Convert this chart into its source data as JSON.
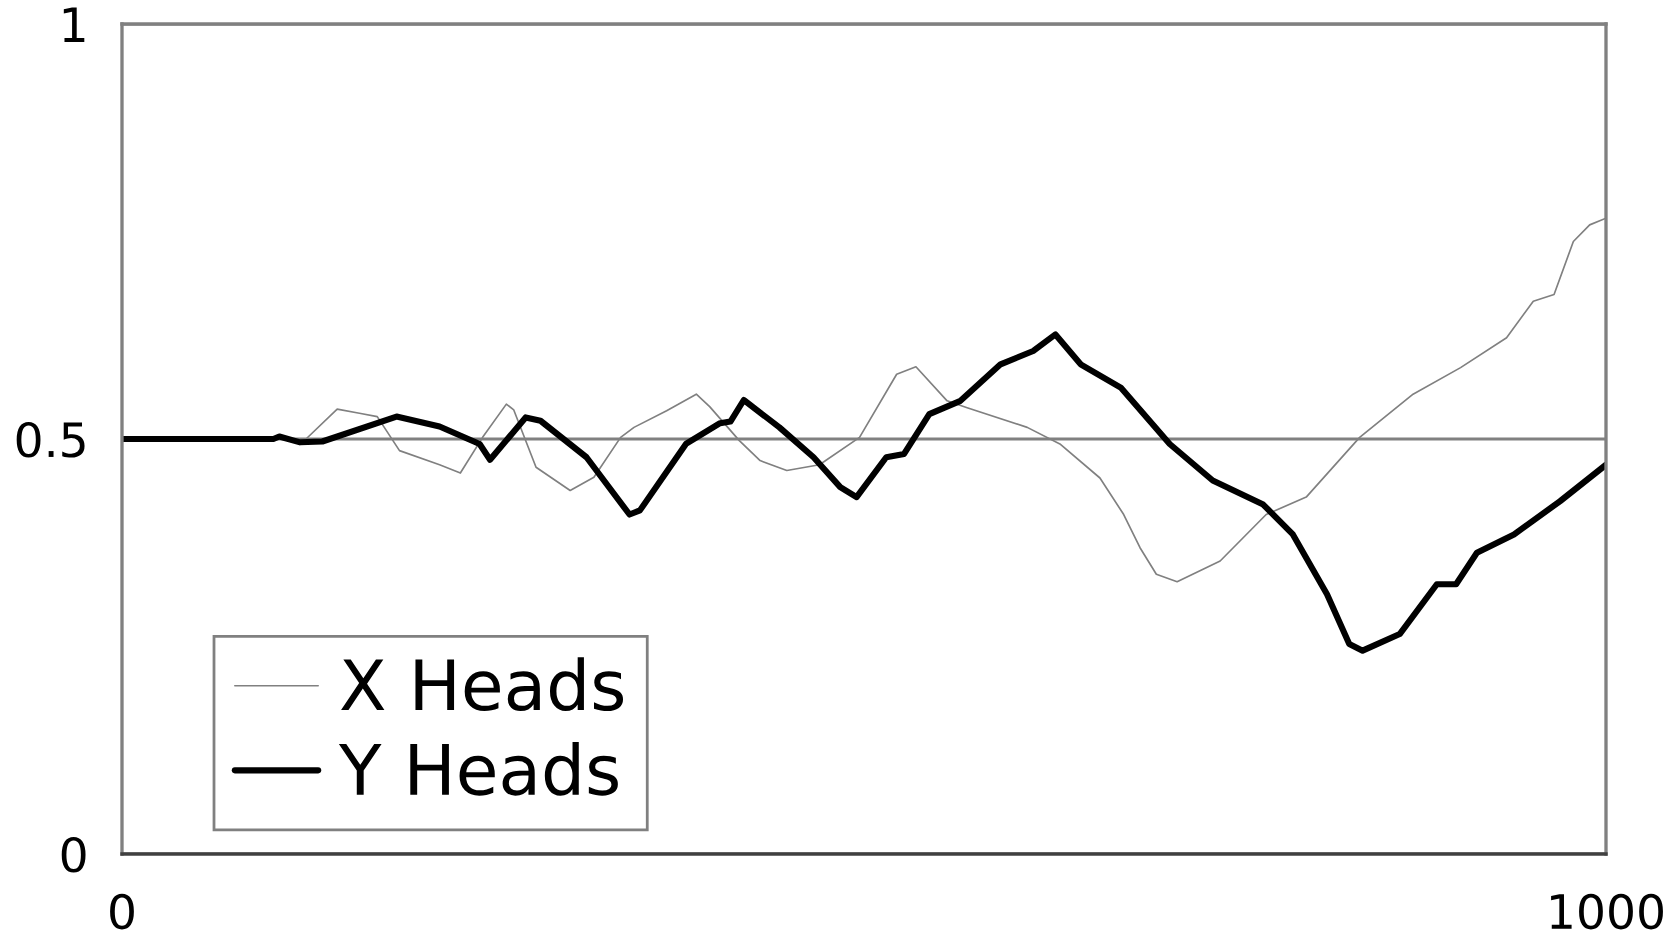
{
  "chart_data": {
    "type": "line",
    "xlim": [
      0,
      1000
    ],
    "xticks": [
      0,
      1000
    ],
    "ylim": [
      0,
      1
    ],
    "yticks": [
      0,
      0.5,
      1
    ],
    "grid": "y",
    "legend": "bottom left",
    "marker": "none",
    "series": [
      {
        "name": "X Heads",
        "color": "#808080",
        "x": [
          0,
          100,
          124,
          145,
          160,
          172,
          187,
          214,
          228,
          243,
          259,
          264,
          279,
          302,
          318,
          336,
          345,
          367,
          387,
          396,
          416,
          430,
          448,
          470,
          497,
          522,
          535,
          556,
          569,
          610,
          632,
          659,
          675,
          686,
          697,
          711,
          740,
          771,
          798,
          834,
          870,
          902,
          933,
          951,
          965,
          978,
          989,
          1000
        ],
        "values": [
          0.5,
          0.5,
          0.5,
          0.536,
          0.531,
          0.527,
          0.486,
          0.469,
          0.459,
          0.502,
          0.542,
          0.535,
          0.466,
          0.438,
          0.454,
          0.502,
          0.514,
          0.534,
          0.554,
          0.539,
          0.498,
          0.474,
          0.462,
          0.469,
          0.502,
          0.578,
          0.587,
          0.546,
          0.538,
          0.514,
          0.494,
          0.453,
          0.409,
          0.369,
          0.337,
          0.328,
          0.353,
          0.409,
          0.43,
          0.502,
          0.554,
          0.586,
          0.622,
          0.666,
          0.674,
          0.738,
          0.758,
          0.766
        ]
      },
      {
        "name": "Y Heads",
        "color": "#000000",
        "x": [
          0,
          102,
          106,
          120,
          135,
          185,
          214,
          241,
          248,
          272,
          282,
          313,
          342,
          349,
          380,
          403,
          410,
          419,
          443,
          466,
          484,
          495,
          515,
          527,
          544,
          565,
          592,
          614,
          629,
          646,
          673,
          706,
          735,
          769,
          789,
          812,
          827,
          836,
          861,
          886,
          899,
          913,
          938,
          969,
          1000
        ],
        "values": [
          0.5,
          0.5,
          0.503,
          0.496,
          0.497,
          0.527,
          0.515,
          0.494,
          0.475,
          0.526,
          0.522,
          0.478,
          0.409,
          0.414,
          0.494,
          0.519,
          0.521,
          0.547,
          0.514,
          0.478,
          0.442,
          0.43,
          0.478,
          0.482,
          0.53,
          0.546,
          0.59,
          0.606,
          0.626,
          0.59,
          0.562,
          0.494,
          0.45,
          0.421,
          0.385,
          0.313,
          0.253,
          0.245,
          0.265,
          0.325,
          0.325,
          0.363,
          0.385,
          0.425,
          0.469
        ]
      }
    ]
  }
}
